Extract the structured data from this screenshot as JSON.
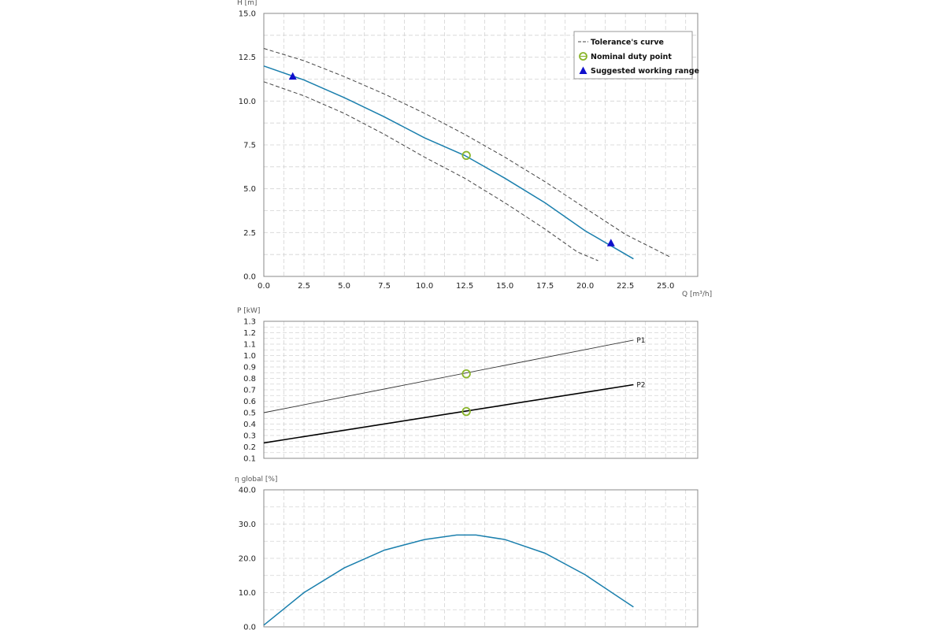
{
  "chart_data": [
    {
      "type": "line",
      "ylabel": "H [m]",
      "xlabel": "Q [m³/h]",
      "xlim": [
        0,
        27
      ],
      "ylim": [
        0,
        15
      ],
      "xticks": [
        "0.0",
        "2.5",
        "5.0",
        "7.5",
        "10.0",
        "12.5",
        "15.0",
        "17.5",
        "20.0",
        "22.5",
        "25.0"
      ],
      "yticks": [
        "0.0",
        "2.5",
        "5.0",
        "7.5",
        "10.0",
        "12.5",
        "15.0"
      ],
      "grid": true,
      "legend_position": "top-right",
      "legend": [
        "Tolerance's curve",
        "Nominal duty point",
        "Suggested working range"
      ],
      "series": [
        {
          "x": [
            0,
            2.5,
            5,
            7.5,
            10,
            12.5,
            15,
            17.5,
            20,
            23
          ],
          "y": [
            12.0,
            11.2,
            10.2,
            9.1,
            7.9,
            6.9,
            5.6,
            4.2,
            2.6,
            1.0
          ],
          "color": "#1a7fad"
        },
        {
          "x": [
            0,
            2.5,
            5,
            7.5,
            10,
            12.5,
            15,
            17.5,
            20,
            22.5,
            25.3
          ],
          "y": [
            13.0,
            12.3,
            11.4,
            10.4,
            9.3,
            8.1,
            6.8,
            5.4,
            3.9,
            2.4,
            1.1
          ],
          "color": "#444444",
          "dashed": true
        },
        {
          "x": [
            0,
            2.5,
            5,
            7.5,
            10,
            12.5,
            15,
            17.5,
            19.5,
            20.8
          ],
          "y": [
            11.1,
            10.3,
            9.3,
            8.1,
            6.8,
            5.6,
            4.2,
            2.7,
            1.4,
            0.9
          ],
          "color": "#444444",
          "dashed": true
        }
      ],
      "duty_point": {
        "x": 12.6,
        "y": 6.9,
        "color": "#8ab52a"
      },
      "working_range": [
        {
          "x": 1.8,
          "y": 11.4
        },
        {
          "x": 21.6,
          "y": 1.9
        }
      ],
      "working_range_color": "#1010cc"
    },
    {
      "type": "line",
      "ylabel": "P [kW]",
      "xlim": [
        0,
        27
      ],
      "ylim": [
        0.1,
        1.3
      ],
      "yticks": [
        "0.1",
        "0.2",
        "0.3",
        "0.4",
        "0.5",
        "0.6",
        "0.7",
        "0.8",
        "0.9",
        "1.0",
        "1.1",
        "1.2",
        "1.3"
      ],
      "grid": true,
      "series": [
        {
          "name": "P1",
          "x": [
            0,
            23
          ],
          "y": [
            0.5,
            1.135
          ],
          "color": "#333333"
        },
        {
          "name": "P2",
          "x": [
            0,
            23
          ],
          "y": [
            0.235,
            0.745
          ],
          "color": "#000000"
        }
      ],
      "duty_points": [
        {
          "x": 12.6,
          "y": 0.84
        },
        {
          "x": 12.6,
          "y": 0.51
        }
      ],
      "duty_color": "#8ab52a"
    },
    {
      "type": "line",
      "ylabel": "η global [%]",
      "xlim": [
        0,
        27
      ],
      "ylim": [
        0,
        40
      ],
      "yticks": [
        "0.0",
        "10.0",
        "20.0",
        "30.0",
        "40.0"
      ],
      "grid": true,
      "series": [
        {
          "x": [
            0,
            2.5,
            5,
            7.5,
            10,
            12,
            13.2,
            15,
            17.5,
            20,
            23
          ],
          "y": [
            0.5,
            10,
            17.2,
            22.4,
            25.5,
            26.8,
            26.8,
            25.5,
            21.5,
            15.2,
            5.8
          ],
          "color": "#1a7fad"
        }
      ]
    }
  ]
}
